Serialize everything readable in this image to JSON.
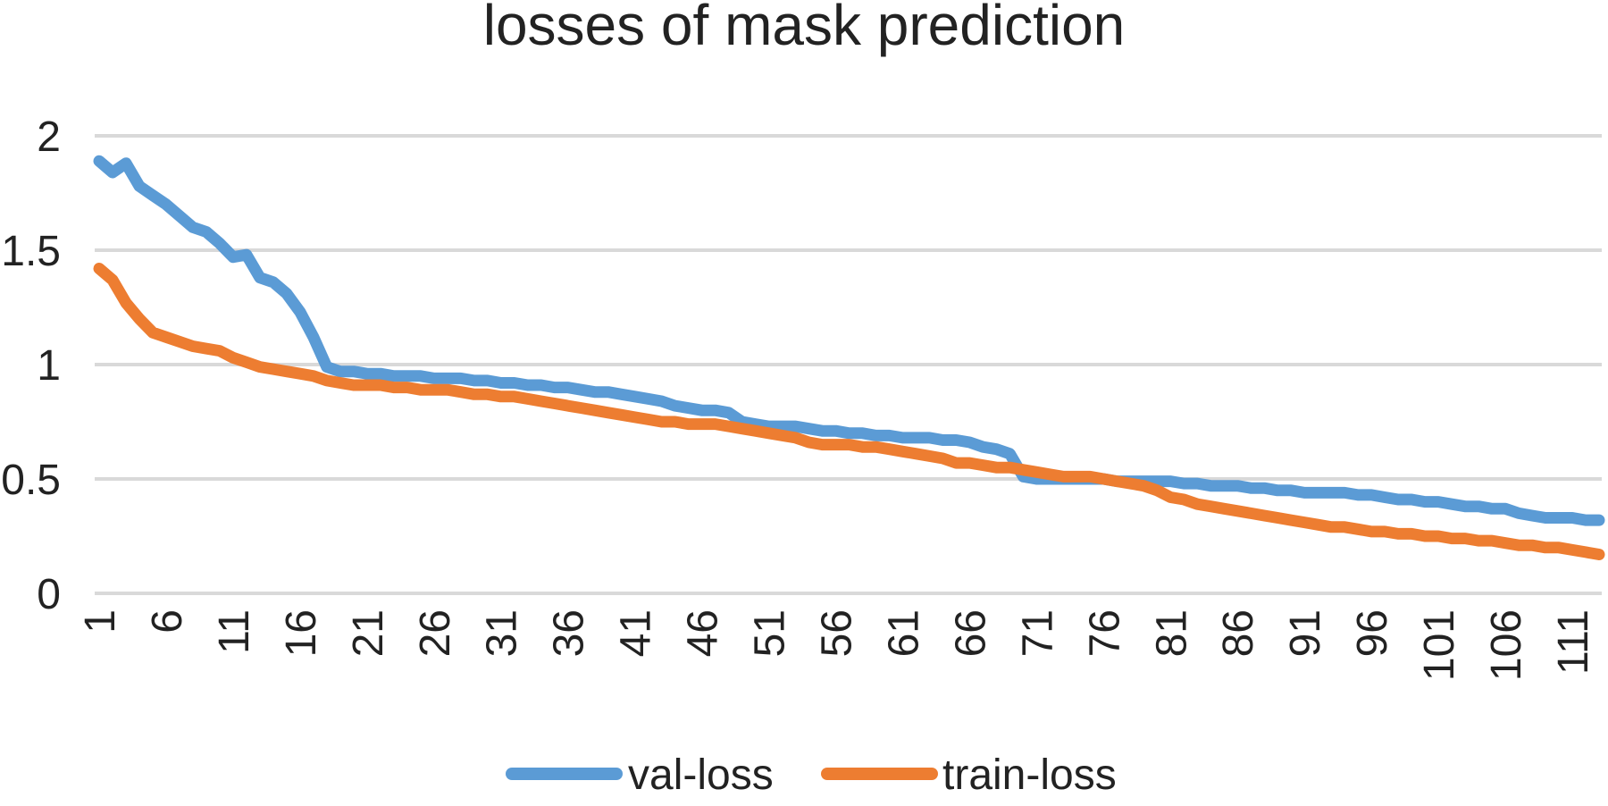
{
  "chart_data": {
    "type": "line",
    "title": "losses of mask prediction",
    "xlabel": "",
    "ylabel": "",
    "ylim": [
      0,
      2
    ],
    "y_ticks": [
      "0",
      "0.5",
      "1",
      "1.5",
      "2"
    ],
    "x_tick_labels": [
      "1",
      "6",
      "11",
      "16",
      "21",
      "26",
      "31",
      "36",
      "41",
      "46",
      "51",
      "56",
      "61",
      "66",
      "71",
      "76",
      "81",
      "86",
      "91",
      "96",
      "101",
      "106",
      "111"
    ],
    "grid": "horizontal",
    "legend_position": "bottom",
    "x": [
      1,
      2,
      3,
      4,
      5,
      6,
      7,
      8,
      9,
      10,
      11,
      12,
      13,
      14,
      15,
      16,
      17,
      18,
      19,
      20,
      21,
      22,
      23,
      24,
      25,
      26,
      27,
      28,
      29,
      30,
      31,
      32,
      33,
      34,
      35,
      36,
      37,
      38,
      39,
      40,
      41,
      42,
      43,
      44,
      45,
      46,
      47,
      48,
      49,
      50,
      51,
      52,
      53,
      54,
      55,
      56,
      57,
      58,
      59,
      60,
      61,
      62,
      63,
      64,
      65,
      66,
      67,
      68,
      69,
      70,
      71,
      72,
      73,
      74,
      75,
      76,
      77,
      78,
      79,
      80,
      81,
      82,
      83,
      84,
      85,
      86,
      87,
      88,
      89,
      90,
      91,
      92,
      93,
      94,
      95,
      96,
      97,
      98,
      99,
      100,
      101,
      102,
      103,
      104,
      105,
      106,
      107,
      108,
      109,
      110,
      111,
      112,
      113
    ],
    "series": [
      {
        "name": "val-loss",
        "color": "#5b9bd5",
        "values": [
          1.89,
          1.84,
          1.88,
          1.78,
          1.74,
          1.7,
          1.65,
          1.6,
          1.58,
          1.53,
          1.47,
          1.48,
          1.38,
          1.36,
          1.31,
          1.23,
          1.12,
          0.99,
          0.97,
          0.97,
          0.96,
          0.96,
          0.95,
          0.95,
          0.95,
          0.94,
          0.94,
          0.94,
          0.93,
          0.93,
          0.92,
          0.92,
          0.91,
          0.91,
          0.9,
          0.9,
          0.89,
          0.88,
          0.88,
          0.87,
          0.86,
          0.85,
          0.84,
          0.82,
          0.81,
          0.8,
          0.8,
          0.79,
          0.75,
          0.74,
          0.73,
          0.73,
          0.73,
          0.72,
          0.71,
          0.71,
          0.7,
          0.7,
          0.69,
          0.69,
          0.68,
          0.68,
          0.68,
          0.67,
          0.67,
          0.66,
          0.64,
          0.63,
          0.61,
          0.51,
          0.5,
          0.5,
          0.5,
          0.5,
          0.5,
          0.5,
          0.49,
          0.49,
          0.49,
          0.49,
          0.49,
          0.48,
          0.48,
          0.47,
          0.47,
          0.47,
          0.46,
          0.46,
          0.45,
          0.45,
          0.44,
          0.44,
          0.44,
          0.44,
          0.43,
          0.43,
          0.42,
          0.41,
          0.41,
          0.4,
          0.4,
          0.39,
          0.38,
          0.38,
          0.37,
          0.37,
          0.35,
          0.34,
          0.33,
          0.33,
          0.33,
          0.32,
          0.32
        ]
      },
      {
        "name": "train-loss",
        "color": "#ed7d31",
        "values": [
          1.42,
          1.37,
          1.27,
          1.2,
          1.14,
          1.12,
          1.1,
          1.08,
          1.07,
          1.06,
          1.03,
          1.01,
          0.99,
          0.98,
          0.97,
          0.96,
          0.95,
          0.93,
          0.92,
          0.91,
          0.91,
          0.91,
          0.9,
          0.9,
          0.89,
          0.89,
          0.89,
          0.88,
          0.87,
          0.87,
          0.86,
          0.86,
          0.85,
          0.84,
          0.83,
          0.82,
          0.81,
          0.8,
          0.79,
          0.78,
          0.77,
          0.76,
          0.75,
          0.75,
          0.74,
          0.74,
          0.74,
          0.73,
          0.72,
          0.71,
          0.7,
          0.69,
          0.68,
          0.66,
          0.65,
          0.65,
          0.65,
          0.64,
          0.64,
          0.63,
          0.62,
          0.61,
          0.6,
          0.59,
          0.57,
          0.57,
          0.56,
          0.55,
          0.55,
          0.54,
          0.53,
          0.52,
          0.51,
          0.51,
          0.51,
          0.5,
          0.49,
          0.48,
          0.47,
          0.45,
          0.42,
          0.41,
          0.39,
          0.38,
          0.37,
          0.36,
          0.35,
          0.34,
          0.33,
          0.32,
          0.31,
          0.3,
          0.29,
          0.29,
          0.28,
          0.27,
          0.27,
          0.26,
          0.26,
          0.25,
          0.25,
          0.24,
          0.24,
          0.23,
          0.23,
          0.22,
          0.21,
          0.21,
          0.2,
          0.2,
          0.19,
          0.18,
          0.17
        ]
      }
    ]
  }
}
